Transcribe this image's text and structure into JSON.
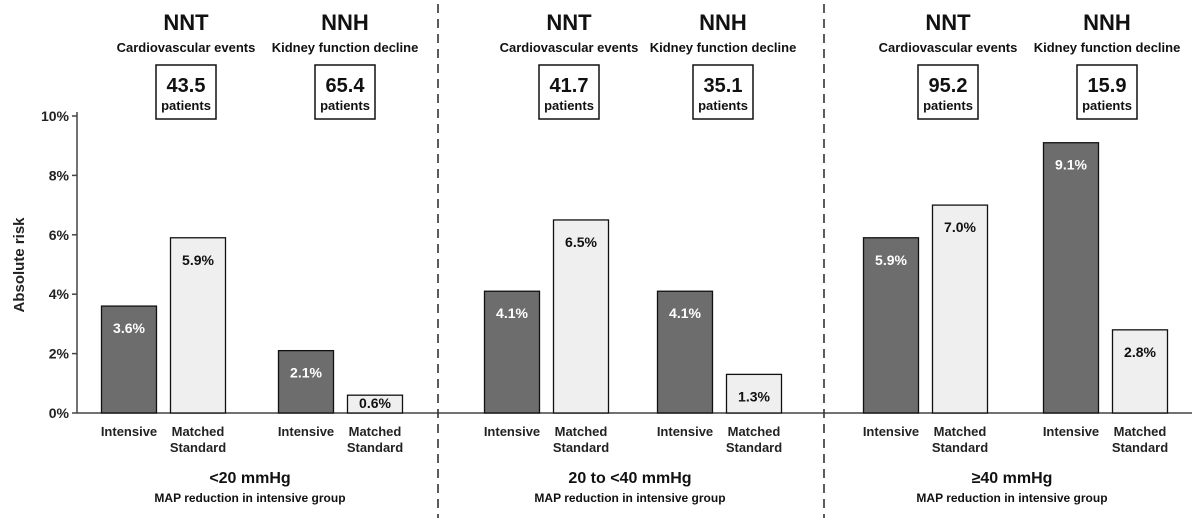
{
  "chart_data": {
    "type": "bar",
    "ylabel": "Absolute risk",
    "ylim": [
      0,
      10
    ],
    "yticks": [
      "0%",
      "2%",
      "4%",
      "6%",
      "8%",
      "10%"
    ],
    "colors": {
      "intensive": "#6d6d6d",
      "standard": "#efefef",
      "outline": "#111111",
      "value_dark_bg": "#ffffff",
      "value_light_bg": "#111111"
    },
    "panels": [
      {
        "group_label": "<20 mmHg",
        "group_sublabel": "MAP reduction in intensive group",
        "outcomes": [
          {
            "metric": "NNT",
            "outcome": "Cardiovascular events",
            "number": "43.5",
            "unit": "patients",
            "bars": [
              {
                "category": "Intensive",
                "value": 3.6,
                "label": "3.6%"
              },
              {
                "category": [
                  "Matched",
                  "Standard"
                ],
                "value": 5.9,
                "label": "5.9%"
              }
            ]
          },
          {
            "metric": "NNH",
            "outcome": "Kidney function decline",
            "number": "65.4",
            "unit": "patients",
            "bars": [
              {
                "category": "Intensive",
                "value": 2.1,
                "label": "2.1%"
              },
              {
                "category": [
                  "Matched",
                  "Standard"
                ],
                "value": 0.6,
                "label": "0.6%"
              }
            ]
          }
        ]
      },
      {
        "group_label": "20 to <40 mmHg",
        "group_sublabel": "MAP reduction in intensive group",
        "outcomes": [
          {
            "metric": "NNT",
            "outcome": "Cardiovascular events",
            "number": "41.7",
            "unit": "patients",
            "bars": [
              {
                "category": "Intensive",
                "value": 4.1,
                "label": "4.1%"
              },
              {
                "category": [
                  "Matched",
                  "Standard"
                ],
                "value": 6.5,
                "label": "6.5%"
              }
            ]
          },
          {
            "metric": "NNH",
            "outcome": "Kidney function decline",
            "number": "35.1",
            "unit": "patients",
            "bars": [
              {
                "category": "Intensive",
                "value": 4.1,
                "label": "4.1%"
              },
              {
                "category": [
                  "Matched",
                  "Standard"
                ],
                "value": 1.3,
                "label": "1.3%"
              }
            ]
          }
        ]
      },
      {
        "group_label": "≥40 mmHg",
        "group_sublabel": "MAP reduction in intensive group",
        "outcomes": [
          {
            "metric": "NNT",
            "outcome": "Cardiovascular events",
            "number": "95.2",
            "unit": "patients",
            "bars": [
              {
                "category": "Intensive",
                "value": 5.9,
                "label": "5.9%"
              },
              {
                "category": [
                  "Matched",
                  "Standard"
                ],
                "value": 7.0,
                "label": "7.0%"
              }
            ]
          },
          {
            "metric": "NNH",
            "outcome": "Kidney function decline",
            "number": "15.9",
            "unit": "patients",
            "bars": [
              {
                "category": "Intensive",
                "value": 9.1,
                "label": "9.1%"
              },
              {
                "category": [
                  "Matched",
                  "Standard"
                ],
                "value": 2.8,
                "label": "2.8%"
              }
            ]
          }
        ]
      }
    ]
  }
}
